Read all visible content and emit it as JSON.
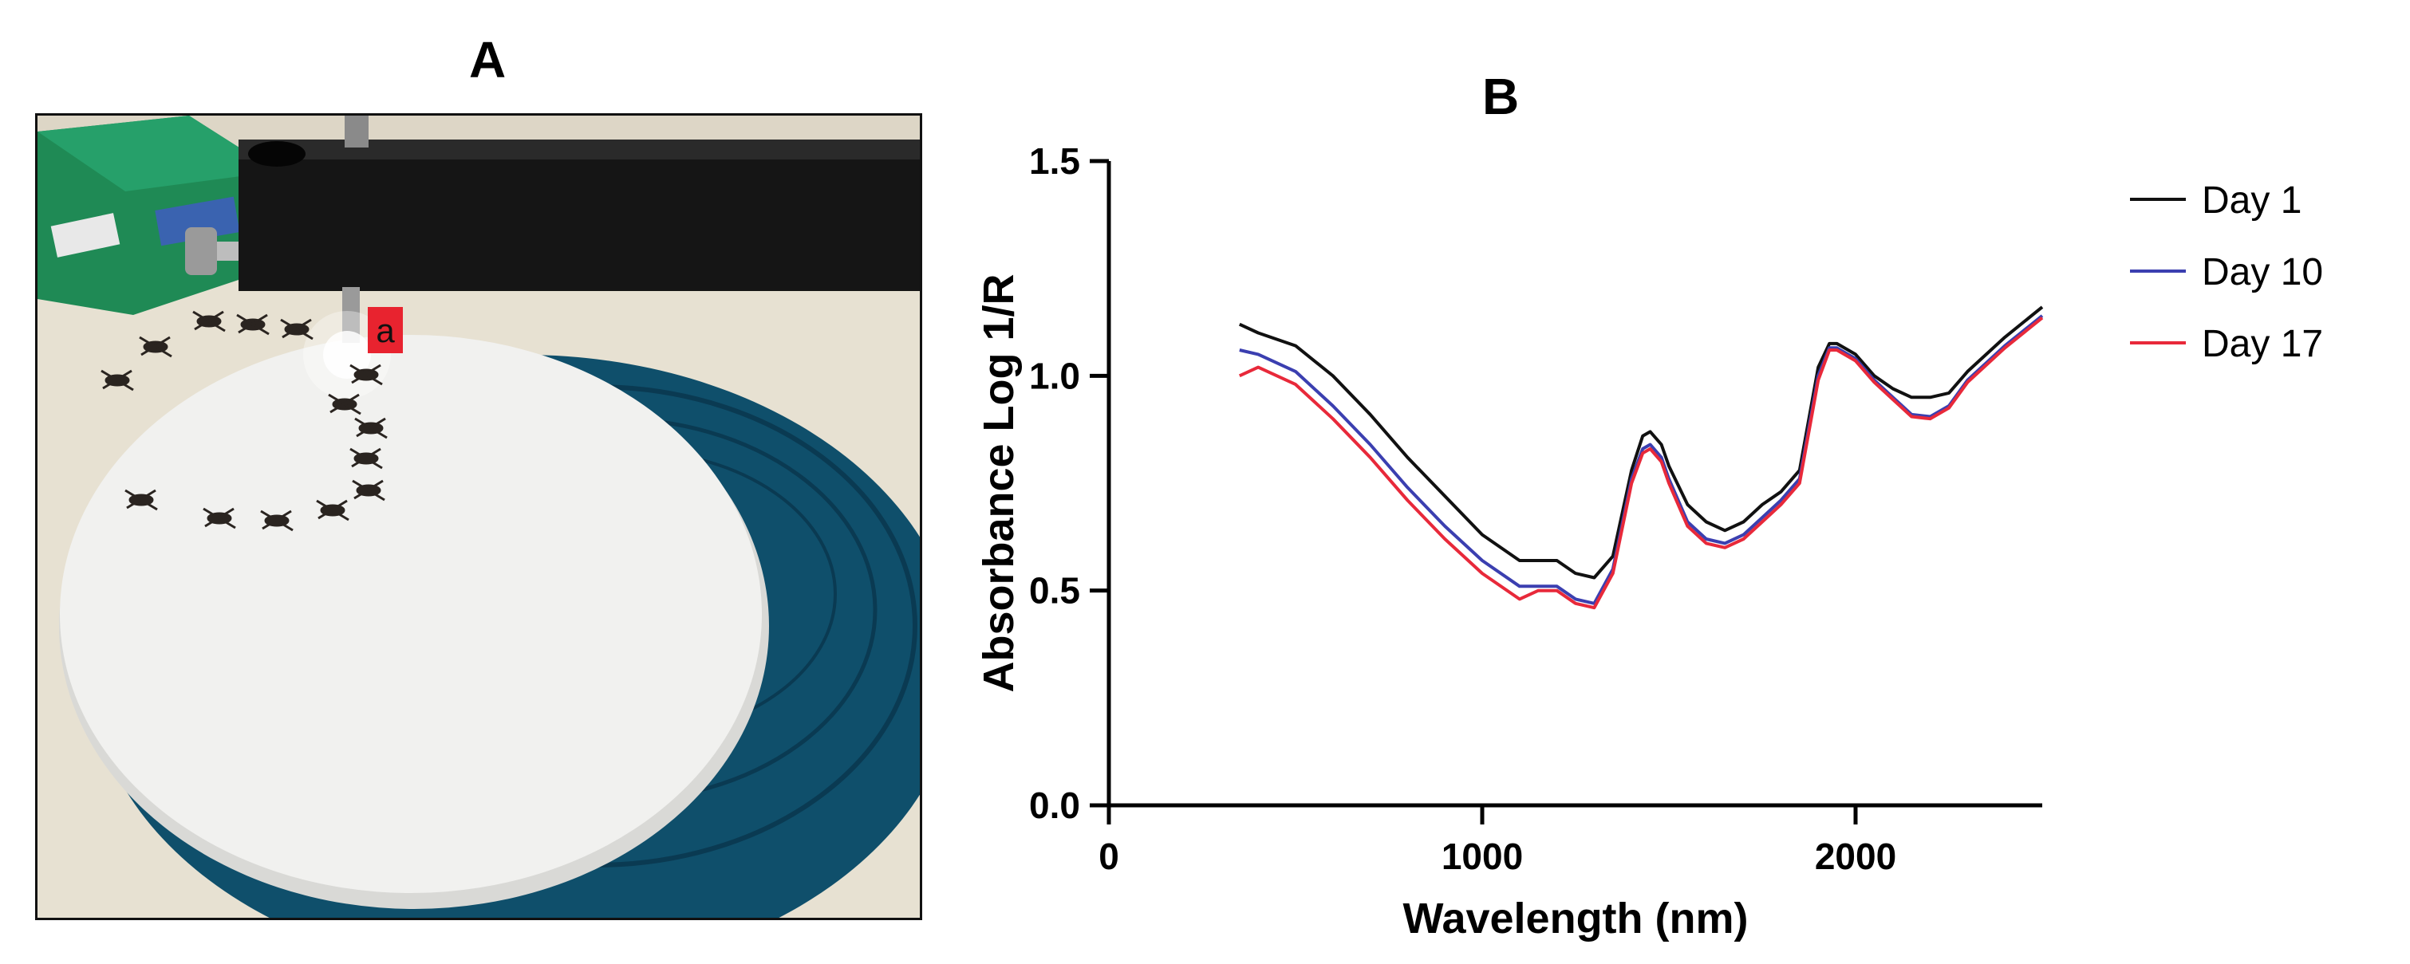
{
  "panels": {
    "a_label": "A",
    "b_label": "B",
    "photo_marker_label": "a"
  },
  "colors": {
    "day1": "#111111",
    "day10": "#3b3fb0",
    "day17": "#e8293a",
    "marker_bg": "#e8232f",
    "turntable": "#0f4f6b",
    "plate": "#f1f1ef"
  },
  "chart_data": {
    "type": "line",
    "title": "",
    "xlabel": "Wavelength (nm)",
    "ylabel": "Absorbance Log 1/R",
    "xlim": [
      0,
      2500
    ],
    "ylim": [
      0.0,
      1.5
    ],
    "xticks": [
      0,
      1000,
      2000
    ],
    "xtick_labels": [
      "0",
      "1000",
      "2000"
    ],
    "yticks": [
      0.0,
      0.5,
      1.0,
      1.5
    ],
    "ytick_labels": [
      "0.0",
      "0.5",
      "1.0",
      "1.5"
    ],
    "grid": false,
    "legend_position": "top-right",
    "series": [
      {
        "name": "Day 1",
        "color": "#111111",
        "x": [
          350,
          400,
          500,
          600,
          700,
          800,
          900,
          1000,
          1100,
          1150,
          1200,
          1250,
          1300,
          1350,
          1400,
          1430,
          1450,
          1480,
          1500,
          1550,
          1600,
          1650,
          1700,
          1750,
          1800,
          1850,
          1900,
          1930,
          1950,
          2000,
          2050,
          2100,
          2150,
          2200,
          2250,
          2300,
          2400,
          2500
        ],
        "y": [
          1.12,
          1.1,
          1.07,
          1.0,
          0.91,
          0.81,
          0.72,
          0.63,
          0.57,
          0.57,
          0.57,
          0.54,
          0.53,
          0.58,
          0.78,
          0.86,
          0.87,
          0.84,
          0.79,
          0.7,
          0.66,
          0.64,
          0.66,
          0.7,
          0.73,
          0.78,
          1.02,
          1.075,
          1.075,
          1.05,
          1.0,
          0.97,
          0.95,
          0.95,
          0.96,
          1.01,
          1.09,
          1.16
        ]
      },
      {
        "name": "Day 10",
        "color": "#3b3fb0",
        "x": [
          350,
          400,
          500,
          600,
          700,
          800,
          900,
          1000,
          1100,
          1150,
          1200,
          1250,
          1300,
          1350,
          1400,
          1430,
          1450,
          1480,
          1500,
          1550,
          1600,
          1650,
          1700,
          1750,
          1800,
          1850,
          1900,
          1930,
          1950,
          2000,
          2050,
          2100,
          2150,
          2200,
          2250,
          2300,
          2400,
          2500
        ],
        "y": [
          1.06,
          1.05,
          1.01,
          0.93,
          0.84,
          0.74,
          0.65,
          0.57,
          0.51,
          0.51,
          0.51,
          0.48,
          0.47,
          0.55,
          0.76,
          0.83,
          0.84,
          0.81,
          0.76,
          0.66,
          0.62,
          0.61,
          0.63,
          0.67,
          0.71,
          0.76,
          1.0,
          1.065,
          1.065,
          1.04,
          0.99,
          0.95,
          0.91,
          0.905,
          0.93,
          0.99,
          1.07,
          1.14
        ]
      },
      {
        "name": "Day 17",
        "color": "#e8293a",
        "x": [
          350,
          400,
          500,
          600,
          700,
          800,
          900,
          1000,
          1100,
          1150,
          1200,
          1250,
          1300,
          1350,
          1400,
          1430,
          1450,
          1480,
          1500,
          1550,
          1600,
          1650,
          1700,
          1750,
          1800,
          1850,
          1900,
          1930,
          1950,
          2000,
          2050,
          2100,
          2150,
          2200,
          2250,
          2300,
          2400,
          2500
        ],
        "y": [
          1.0,
          1.02,
          0.98,
          0.9,
          0.81,
          0.71,
          0.62,
          0.54,
          0.48,
          0.5,
          0.5,
          0.47,
          0.46,
          0.54,
          0.75,
          0.82,
          0.83,
          0.8,
          0.75,
          0.65,
          0.61,
          0.6,
          0.62,
          0.66,
          0.7,
          0.75,
          0.99,
          1.06,
          1.06,
          1.035,
          0.985,
          0.945,
          0.905,
          0.9,
          0.925,
          0.985,
          1.065,
          1.135
        ]
      }
    ]
  }
}
